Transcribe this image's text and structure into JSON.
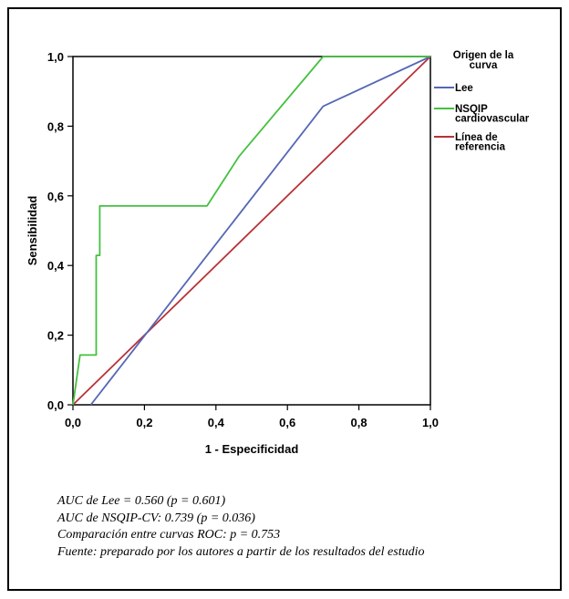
{
  "chart_data": {
    "type": "line",
    "title": "",
    "xlabel": "1 - Especificidad",
    "ylabel": "Sensibilidad",
    "xlim": [
      0,
      1
    ],
    "ylim": [
      0,
      1
    ],
    "xticks": [
      "0,0",
      "0,2",
      "0,4",
      "0,6",
      "0,8",
      "1,0"
    ],
    "yticks": [
      "0,0",
      "0,2",
      "0,4",
      "0,6",
      "0,8",
      "1,0"
    ],
    "grid": false,
    "legend_position": "right",
    "legend": {
      "title": [
        "Origen de la",
        "curva"
      ],
      "entries": [
        {
          "lines": [
            "Lee"
          ],
          "color": "#5567b5"
        },
        {
          "lines": [
            "NSQIP",
            "cardiovascular"
          ],
          "color": "#45c13f"
        },
        {
          "lines": [
            "Línea de",
            "referencia"
          ],
          "color": "#b83236"
        }
      ]
    },
    "series": [
      {
        "name": "Lee",
        "color": "#5567b5",
        "points": [
          [
            0.05,
            0.0
          ],
          [
            0.7,
            0.857
          ],
          [
            1.0,
            1.0
          ]
        ]
      },
      {
        "name": "NSQIP cardiovascular",
        "color": "#45c13f",
        "points": [
          [
            0.0,
            0.0
          ],
          [
            0.02,
            0.143
          ],
          [
            0.065,
            0.143
          ],
          [
            0.065,
            0.429
          ],
          [
            0.075,
            0.429
          ],
          [
            0.075,
            0.571
          ],
          [
            0.375,
            0.571
          ],
          [
            0.465,
            0.714
          ],
          [
            0.7,
            1.0
          ],
          [
            1.0,
            1.0
          ]
        ]
      },
      {
        "name": "Línea de referencia",
        "color": "#b83236",
        "points": [
          [
            0.0,
            0.0
          ],
          [
            1.0,
            1.0
          ]
        ]
      }
    ]
  },
  "notes": [
    "AUC de Lee = 0.560 (p = 0.601)",
    "AUC de NSQIP-CV: 0.739 (p = 0.036)",
    "Comparación entre curvas ROC: p = 0.753",
    "Fuente: preparado por los autores a partir de los resultados del estudio"
  ]
}
